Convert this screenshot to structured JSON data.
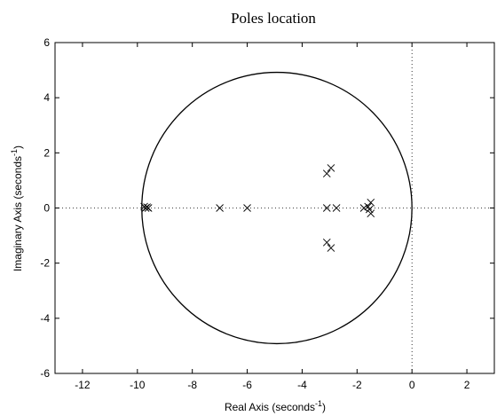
{
  "chart_data": {
    "type": "scatter",
    "title": "Poles location",
    "x_label": {
      "text": "Real Axis (seconds",
      "superscript": "-1",
      "suffix": ")"
    },
    "y_label": {
      "text": "Imaginary Axis (seconds",
      "superscript": "-1",
      "suffix": ")"
    },
    "series": [
      {
        "name": "poles",
        "color": "#000000",
        "marker": "x",
        "x": [
          -9.75,
          -9.7,
          -9.65,
          -9.6,
          -7,
          -6,
          -3.1,
          -2.95,
          -3.1,
          -2.95,
          -3.1,
          -2.75,
          -1.75,
          -1.6,
          -1.5,
          -1.5,
          -1.55
        ],
        "y": [
          0.05,
          0,
          0.03,
          0,
          0,
          0,
          1.25,
          1.45,
          -1.25,
          -1.45,
          0,
          0,
          0,
          0.05,
          0.2,
          -0.2,
          -0.05
        ]
      }
    ],
    "circle": {
      "center": [
        -4.92,
        0
      ],
      "radius": 4.92
    },
    "xlim": [
      -13,
      3
    ],
    "ylim": [
      -6,
      6
    ],
    "xticks": [
      -12,
      -10,
      -8,
      -6,
      -4,
      -2,
      0,
      2
    ],
    "yticks": [
      -6,
      -4,
      -2,
      0,
      2,
      4,
      6
    ],
    "zero_lines": true
  }
}
